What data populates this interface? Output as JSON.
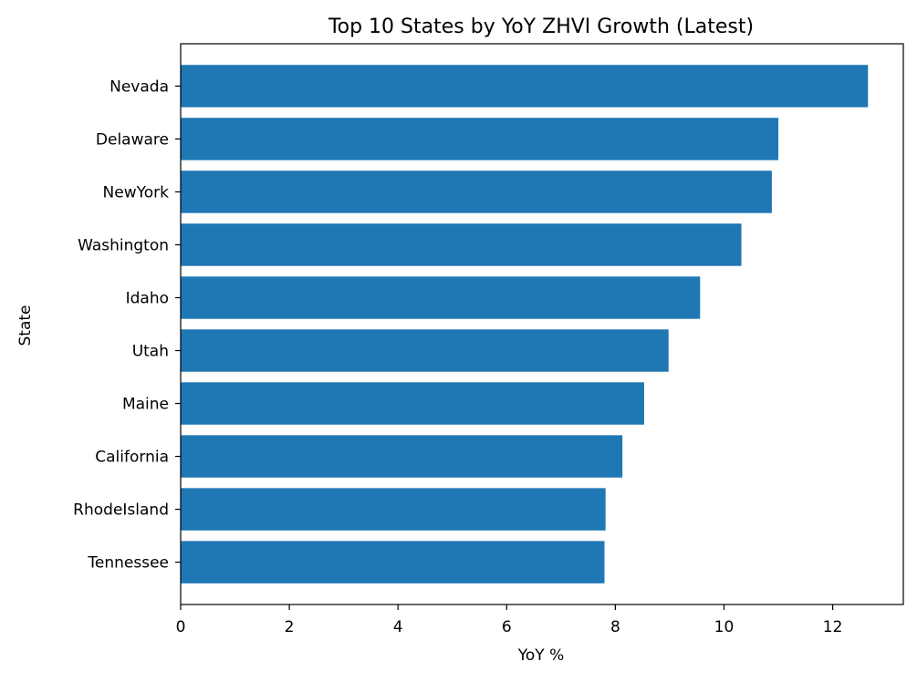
{
  "chart_data": {
    "type": "bar",
    "orientation": "horizontal",
    "title": "Top 10 States by YoY ZHVI Growth (Latest)",
    "xlabel": "YoY %",
    "ylabel": "State",
    "categories": [
      "Nevada",
      "Delaware",
      "NewYork",
      "Washington",
      "Idaho",
      "Utah",
      "Maine",
      "California",
      "RhodeIsland",
      "Tennessee"
    ],
    "values": [
      12.65,
      11.0,
      10.88,
      10.32,
      9.56,
      8.98,
      8.53,
      8.13,
      7.82,
      7.8
    ],
    "xlim": [
      0,
      13.3
    ],
    "xticks": [
      0,
      2,
      4,
      6,
      8,
      10,
      12
    ],
    "grid": false,
    "bar_color": "#1f77b4"
  }
}
